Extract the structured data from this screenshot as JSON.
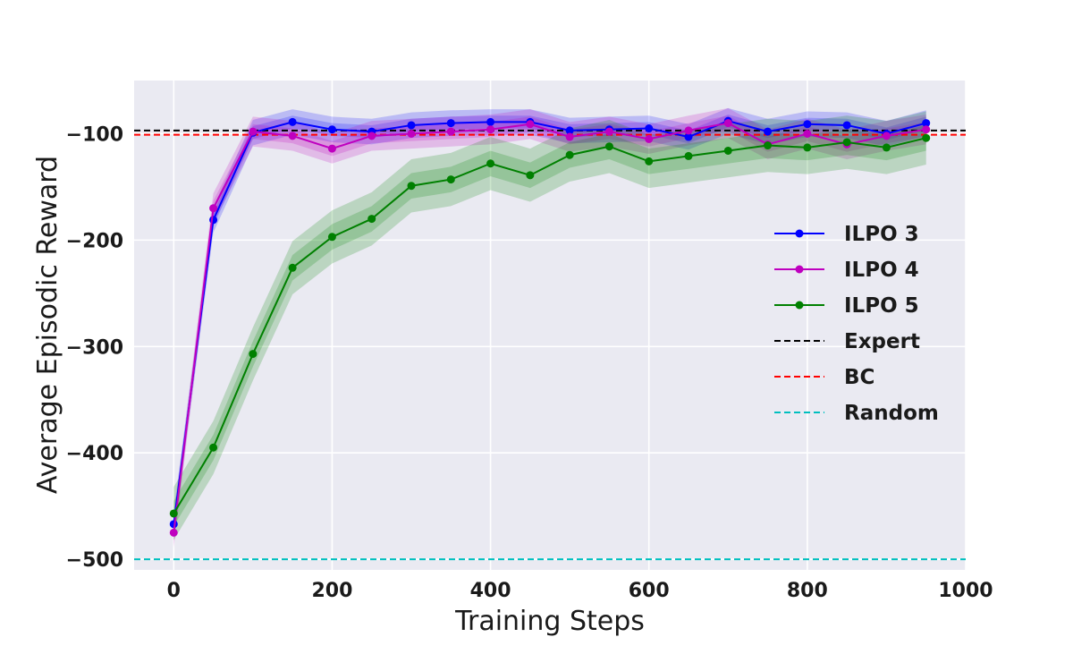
{
  "chart_data": {
    "type": "line",
    "title": "",
    "xlabel": "Training Steps",
    "ylabel": "Average Episodic Reward",
    "xlim": [
      -50,
      1000
    ],
    "ylim": [
      -510,
      -50
    ],
    "xticks": [
      0,
      200,
      400,
      600,
      800,
      1000
    ],
    "yticks": [
      -100,
      -200,
      -300,
      -400,
      -500
    ],
    "grid": true,
    "legend_position": "center-right",
    "series": [
      {
        "name": "ILPO 3",
        "color": "#0000ff",
        "x": [
          0,
          50,
          100,
          150,
          200,
          250,
          300,
          350,
          400,
          450,
          500,
          550,
          600,
          650,
          700,
          750,
          800,
          850,
          900,
          950
        ],
        "y": [
          -467,
          -181,
          -99,
          -89,
          -96,
          -98,
          -92,
          -90,
          -89,
          -89,
          -97,
          -96,
          -95,
          -103,
          -88,
          -98,
          -91,
          -92,
          -100,
          -90
        ],
        "band_inner": 6,
        "band_outer": 12
      },
      {
        "name": "ILPO 4",
        "color": "#bf00bf",
        "x": [
          0,
          50,
          100,
          150,
          200,
          250,
          300,
          350,
          400,
          450,
          500,
          550,
          600,
          650,
          700,
          750,
          800,
          850,
          900,
          950
        ],
        "y": [
          -475,
          -170,
          -98,
          -102,
          -114,
          -102,
          -100,
          -98,
          -96,
          -91,
          -103,
          -98,
          -105,
          -97,
          -90,
          -110,
          -100,
          -110,
          -102,
          -96
        ],
        "band_inner": 7,
        "band_outer": 14
      },
      {
        "name": "ILPO 5",
        "color": "#008000",
        "x": [
          0,
          50,
          100,
          150,
          200,
          250,
          300,
          350,
          400,
          450,
          500,
          550,
          600,
          650,
          700,
          750,
          800,
          850,
          900,
          950
        ],
        "y": [
          -457,
          -395,
          -307,
          -226,
          -197,
          -180,
          -149,
          -143,
          -128,
          -139,
          -120,
          -112,
          -126,
          -121,
          -116,
          -111,
          -113,
          -108,
          -113,
          -104
        ],
        "band_inner": 12,
        "band_outer": 25
      },
      {
        "name": "Expert",
        "color": "#000000",
        "dashed": true,
        "constant": -97
      },
      {
        "name": "BC",
        "color": "#ff0000",
        "dashed": true,
        "constant": -101
      },
      {
        "name": "Random",
        "color": "#00bfbf",
        "dashed": true,
        "constant": -500
      }
    ]
  }
}
